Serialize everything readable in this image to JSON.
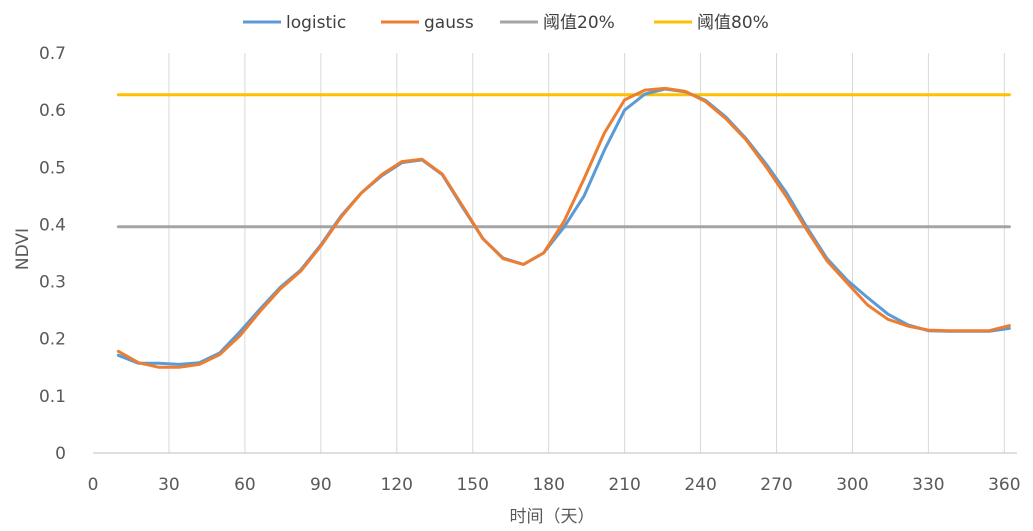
{
  "chart_data": {
    "type": "line",
    "title": "",
    "xlabel": "时间（天）",
    "ylabel": "NDVI",
    "xlim": [
      0,
      365
    ],
    "ylim": [
      0,
      0.7
    ],
    "x_ticks": [
      "0",
      "30",
      "60",
      "90",
      "120",
      "150",
      "180",
      "210",
      "240",
      "270",
      "300",
      "330",
      "360"
    ],
    "y_ticks": [
      "0",
      "0.1",
      "0.2",
      "0.3",
      "0.4",
      "0.5",
      "0.6",
      "0.7"
    ],
    "grid": "vertical",
    "legend_position": "top",
    "x": [
      10,
      18,
      26,
      34,
      42,
      50,
      58,
      66,
      74,
      82,
      90,
      98,
      106,
      114,
      122,
      130,
      138,
      146,
      154,
      162,
      170,
      178,
      186,
      194,
      202,
      210,
      218,
      226,
      234,
      242,
      250,
      258,
      266,
      274,
      282,
      290,
      298,
      306,
      314,
      322,
      330,
      338,
      346,
      354,
      362
    ],
    "series": [
      {
        "name": "logistic",
        "color": "#5B9BD5",
        "values": [
          0.171,
          0.157,
          0.157,
          0.155,
          0.158,
          0.175,
          0.212,
          0.252,
          0.29,
          0.32,
          0.364,
          0.415,
          0.455,
          0.485,
          0.508,
          0.513,
          0.487,
          0.43,
          0.375,
          0.341,
          0.33,
          0.35,
          0.395,
          0.45,
          0.53,
          0.6,
          0.628,
          0.637,
          0.632,
          0.617,
          0.588,
          0.55,
          0.505,
          0.455,
          0.395,
          0.34,
          0.302,
          0.272,
          0.243,
          0.224,
          0.214,
          0.213,
          0.213,
          0.213,
          0.218
        ]
      },
      {
        "name": "gauss",
        "color": "#ED7D31",
        "values": [
          0.178,
          0.158,
          0.15,
          0.15,
          0.155,
          0.172,
          0.205,
          0.248,
          0.287,
          0.318,
          0.362,
          0.413,
          0.455,
          0.487,
          0.51,
          0.514,
          0.488,
          0.432,
          0.375,
          0.34,
          0.33,
          0.35,
          0.405,
          0.48,
          0.56,
          0.618,
          0.635,
          0.638,
          0.633,
          0.615,
          0.585,
          0.548,
          0.5,
          0.448,
          0.39,
          0.336,
          0.297,
          0.259,
          0.234,
          0.222,
          0.215,
          0.214,
          0.214,
          0.214,
          0.223
        ]
      },
      {
        "name": "阈值20%",
        "color": "#A5A5A5",
        "values": [
          0.396,
          0.396,
          0.396,
          0.396,
          0.396,
          0.396,
          0.396,
          0.396,
          0.396,
          0.396,
          0.396,
          0.396,
          0.396,
          0.396,
          0.396,
          0.396,
          0.396,
          0.396,
          0.396,
          0.396,
          0.396,
          0.396,
          0.396,
          0.396,
          0.396,
          0.396,
          0.396,
          0.396,
          0.396,
          0.396,
          0.396,
          0.396,
          0.396,
          0.396,
          0.396,
          0.396,
          0.396,
          0.396,
          0.396,
          0.396,
          0.396,
          0.396,
          0.396,
          0.396,
          0.396
        ]
      },
      {
        "name": "阈值80%",
        "color": "#FFC000",
        "values": [
          0.627,
          0.627,
          0.627,
          0.627,
          0.627,
          0.627,
          0.627,
          0.627,
          0.627,
          0.627,
          0.627,
          0.627,
          0.627,
          0.627,
          0.627,
          0.627,
          0.627,
          0.627,
          0.627,
          0.627,
          0.627,
          0.627,
          0.627,
          0.627,
          0.627,
          0.627,
          0.627,
          0.627,
          0.627,
          0.627,
          0.627,
          0.627,
          0.627,
          0.627,
          0.627,
          0.627,
          0.627,
          0.627,
          0.627,
          0.627,
          0.627,
          0.627,
          0.627,
          0.627,
          0.627
        ]
      }
    ],
    "colors": {
      "axis": "#BFBFBF",
      "grid": "#D9D9D9",
      "text": "#595959"
    }
  }
}
